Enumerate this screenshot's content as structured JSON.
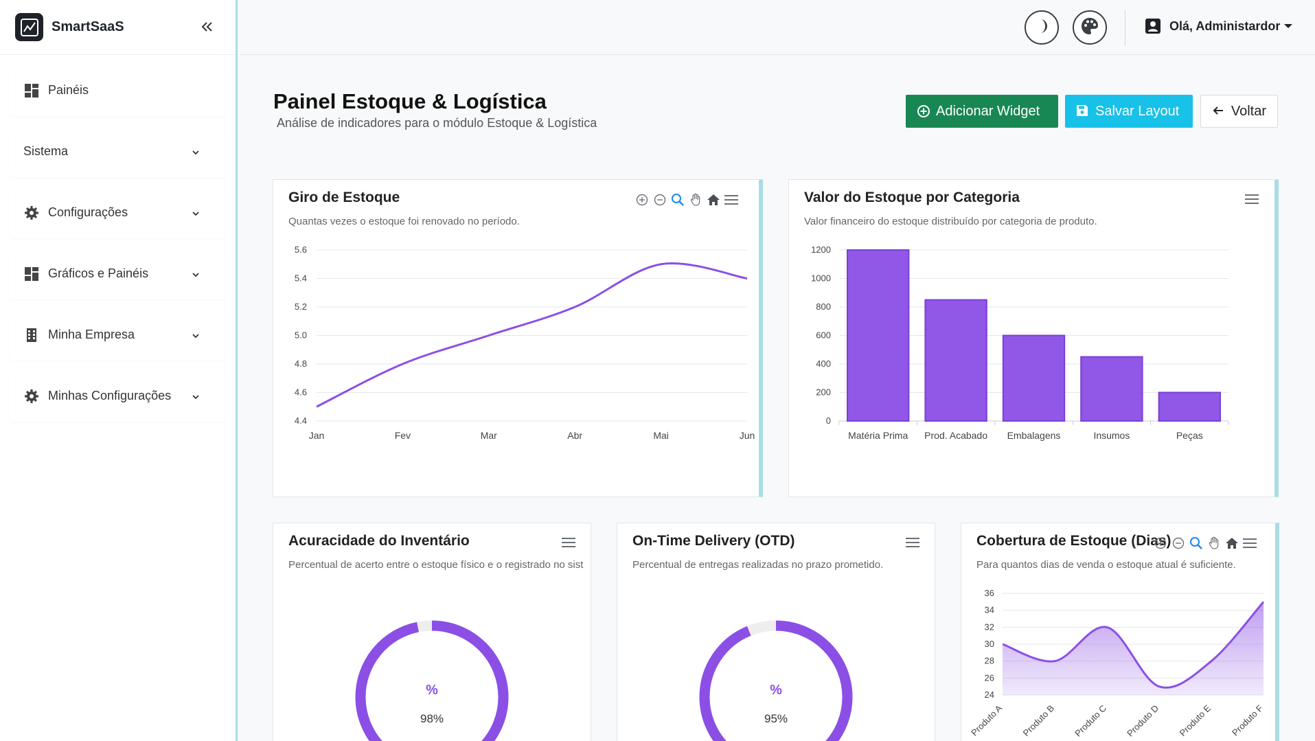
{
  "brand": {
    "name": "SmartSaaS"
  },
  "sidebar": {
    "items": [
      {
        "label": "Painéis",
        "icon": "dashboard-icon"
      },
      {
        "label": "Sistema",
        "icon": ""
      },
      {
        "label": "Configurações",
        "icon": "gear-icon"
      },
      {
        "label": "Gráficos e Painéis",
        "icon": "grid-icon"
      },
      {
        "label": "Minha Empresa",
        "icon": "building-icon"
      },
      {
        "label": "Minhas Configurações",
        "icon": "gear-icon"
      }
    ]
  },
  "topbar": {
    "user_label": "Olá, Administardor"
  },
  "header": {
    "title": "Painel Estoque & Logística",
    "subtitle": "Análise de indicadores para o módulo Estoque & Logística",
    "add_widget": "Adicionar Widget",
    "save_layout": "Salvar Layout",
    "back": "Voltar"
  },
  "colors": {
    "accent": "#8b4fe6",
    "green": "#198754",
    "cyan": "#17c1e8",
    "card_border": "#a9dde6"
  },
  "cards": {
    "giro": {
      "title": "Giro de Estoque",
      "desc": "Quantas vezes o estoque foi renovado no período."
    },
    "valor": {
      "title": "Valor do Estoque por Categoria",
      "desc": "Valor financeiro do estoque distribuído por categoria de produto."
    },
    "acuracidade": {
      "title": "Acuracidade do Inventário",
      "desc": "Percentual de acerto entre o estoque físico e o registrado no sistema.",
      "symbol": "%",
      "value_label": "98%"
    },
    "otd": {
      "title": "On-Time Delivery (OTD)",
      "desc": "Percentual de entregas realizadas no prazo prometido.",
      "symbol": "%",
      "value_label": "95%"
    },
    "cobertura": {
      "title": "Cobertura de Estoque (Dias)",
      "desc": "Para quantos dias de venda o estoque atual é suficiente."
    }
  },
  "chart_data": [
    {
      "type": "line",
      "title": "Giro de Estoque",
      "categories": [
        "Jan",
        "Fev",
        "Mar",
        "Abr",
        "Mai",
        "Jun"
      ],
      "values": [
        4.5,
        4.8,
        5.0,
        5.2,
        5.5,
        5.4
      ],
      "ylim": [
        4.4,
        5.6
      ],
      "yticks": [
        "4.4",
        "4.6",
        "4.8",
        "5.0",
        "5.2",
        "5.4",
        "5.6"
      ],
      "grid": true
    },
    {
      "type": "bar",
      "title": "Valor do Estoque por Categoria",
      "categories": [
        "Matéria Prima",
        "Prod. Acabado",
        "Embalagens",
        "Insumos",
        "Peças"
      ],
      "values": [
        1200,
        850,
        600,
        450,
        200
      ],
      "ylim": [
        0,
        1200
      ],
      "yticks": [
        "0",
        "200",
        "400",
        "600",
        "800",
        "1000",
        "1200"
      ],
      "grid": true
    },
    {
      "type": "pie",
      "title": "Acuracidade do Inventário",
      "values": [
        98,
        2
      ],
      "unit": "%"
    },
    {
      "type": "pie",
      "title": "On-Time Delivery (OTD)",
      "values": [
        95,
        5
      ],
      "unit": "%"
    },
    {
      "type": "area",
      "title": "Cobertura de Estoque (Dias)",
      "categories": [
        "Produto A",
        "Produto B",
        "Produto C",
        "Produto D",
        "Produto E",
        "Produto F"
      ],
      "values": [
        30,
        28,
        32,
        25,
        28,
        35
      ],
      "ylim": [
        24,
        36
      ],
      "yticks": [
        "24",
        "26",
        "28",
        "30",
        "32",
        "34",
        "36"
      ],
      "grid": true
    }
  ]
}
